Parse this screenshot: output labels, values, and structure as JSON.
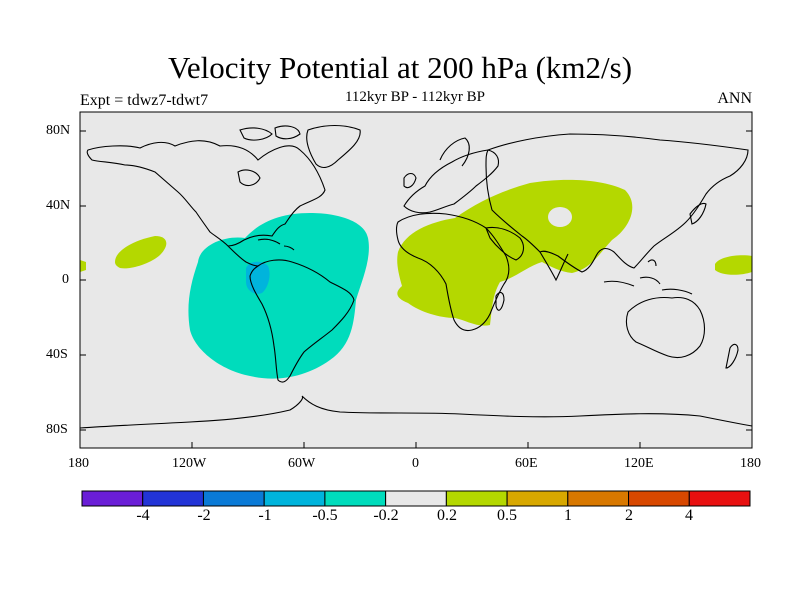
{
  "header": {
    "title": "Velocity Potential at 200 hPa (km2/s)",
    "subtitle": "112kyr BP - 112kyr BP",
    "left_label": "Expt = tdwz7-tdwt7",
    "right_label": "ANN"
  },
  "map": {
    "lat_ticks": [
      "80N",
      "40N",
      "0",
      "40S",
      "80S"
    ],
    "lon_ticks": [
      "180",
      "120W",
      "60W",
      "0",
      "60E",
      "120E",
      "180"
    ],
    "background_color": "#e8e8e8",
    "coastline_color": "#000000"
  },
  "colorbar": {
    "colors": [
      "#6a1ed6",
      "#2234d6",
      "#0a7ad6",
      "#00b4dc",
      "#00dcbc",
      "#e8e8e8",
      "#b4d800",
      "#d8a800",
      "#d87800",
      "#d84800",
      "#e81010"
    ],
    "labels": [
      "-4",
      "-2",
      "-1",
      "-0.5",
      "-0.2",
      "0.2",
      "0.5",
      "1",
      "2",
      "4"
    ]
  }
}
